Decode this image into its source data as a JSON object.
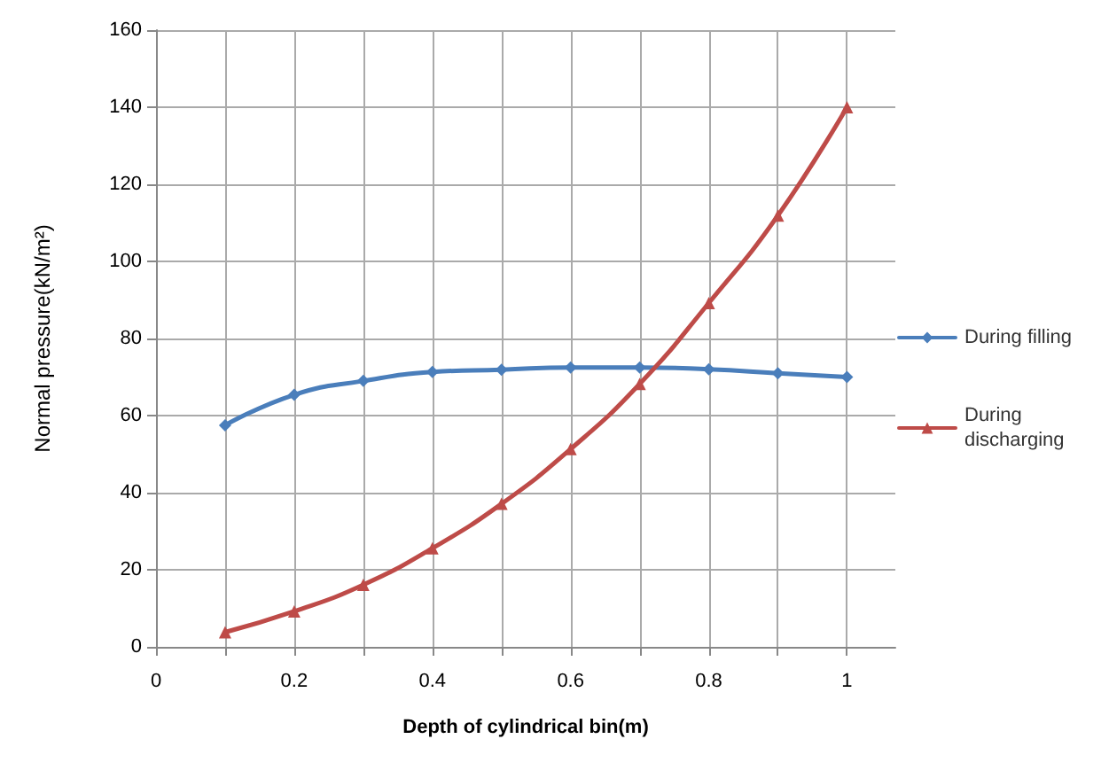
{
  "chart_data": {
    "type": "line",
    "xlabel": "Depth of cylindrical bin(m)",
    "ylabel": "Normal pressure(kN/m²)",
    "x": [
      0.1,
      0.2,
      0.3,
      0.4,
      0.5,
      0.6,
      0.7,
      0.8,
      0.9,
      1.0
    ],
    "series": [
      {
        "name": "During filling",
        "color": "#4a7ebb",
        "marker": "diamond",
        "values": [
          57.5,
          65.4,
          69,
          71.3,
          71.9,
          72.5,
          72.5,
          72,
          71,
          70
        ]
      },
      {
        "name": "During discharging",
        "color": "#be4b48",
        "marker": "triangle",
        "values": [
          3.8,
          9.2,
          16.1,
          25.6,
          37.1,
          51.3,
          68.2,
          89.2,
          111.9,
          140
        ]
      }
    ],
    "xlim": [
      0,
      1.07
    ],
    "xticks": [
      0,
      {
        "value": 0.1,
        "label": null
      },
      0.2,
      {
        "value": 0.3,
        "label": null
      },
      0.4,
      {
        "value": 0.5,
        "label": null
      },
      0.6,
      {
        "value": 0.7,
        "label": null
      },
      0.8,
      {
        "value": 0.9,
        "label": null
      },
      1
    ],
    "ylim": [
      0,
      160
    ],
    "yticks": [
      0,
      20,
      40,
      60,
      80,
      100,
      120,
      140,
      160
    ],
    "grid": true,
    "legend": "right"
  }
}
